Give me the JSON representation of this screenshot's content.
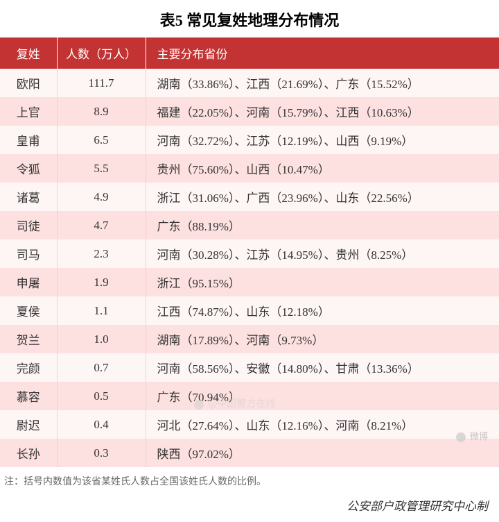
{
  "title": "表5  常见复姓地理分布情况",
  "columns": [
    "复姓",
    "人数（万人）",
    "主要分布省份"
  ],
  "rows": [
    {
      "surname": "欧阳",
      "population": "111.7",
      "provinces": "湖南（33.86%）、江西（21.69%）、广东（15.52%）"
    },
    {
      "surname": "上官",
      "population": "8.9",
      "provinces": "福建（22.05%）、河南（15.79%）、江西（10.63%）"
    },
    {
      "surname": "皇甫",
      "population": "6.5",
      "provinces": "河南（32.72%）、江苏（12.19%）、山西（9.19%）"
    },
    {
      "surname": "令狐",
      "population": "5.5",
      "provinces": "贵州（75.60%）、山西（10.47%）"
    },
    {
      "surname": "诸葛",
      "population": "4.9",
      "provinces": "浙江（31.06%）、广西（23.96%）、山东（22.56%）"
    },
    {
      "surname": "司徒",
      "population": "4.7",
      "provinces": "广东（88.19%）"
    },
    {
      "surname": "司马",
      "population": "2.3",
      "provinces": "河南（30.28%）、江苏（14.95%）、贵州（8.25%）"
    },
    {
      "surname": "申屠",
      "population": "1.9",
      "provinces": "浙江（95.15%）"
    },
    {
      "surname": "夏侯",
      "population": "1.1",
      "provinces": "江西（74.87%）、山东（12.18%）"
    },
    {
      "surname": "贺兰",
      "population": "1.0",
      "provinces": "湖南（17.89%）、河南（9.73%）"
    },
    {
      "surname": "完颜",
      "population": "0.7",
      "provinces": "河南（58.56%）、安徽（14.80%）、甘肃（13.36%）"
    },
    {
      "surname": "慕容",
      "population": "0.5",
      "provinces": "广东（70.94%）"
    },
    {
      "surname": "尉迟",
      "population": "0.4",
      "provinces": "河北（27.64%）、山东（12.16%）、河南（8.21%）"
    },
    {
      "surname": "长孙",
      "population": "0.3",
      "provinces": "陕西（97.02%）"
    }
  ],
  "note": "注：括号内数值为该省某姓氏人数占全国该姓氏人数的比例。",
  "footer": "公安部户政管理研究中心制",
  "watermark1": "@中国警方在线",
  "watermark2": "微博",
  "colors": {
    "header_bg": "#c33333",
    "header_text": "#ffffff",
    "row_even": "#fef5f5",
    "row_odd": "#fde0e0",
    "text": "#333333",
    "note_text": "#666666"
  }
}
